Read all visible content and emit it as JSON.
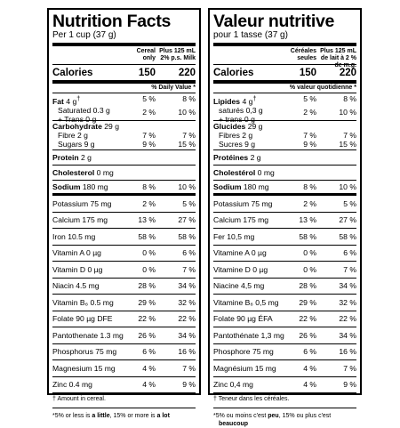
{
  "en": {
    "title": "Nutrition Facts",
    "serving": "Per 1 cup (37 g)",
    "col1": "Cereal only",
    "col2": "Plus 125 mL 2% p.s. Milk",
    "calories": {
      "label": "Calories",
      "v1": "150",
      "v2": "220"
    },
    "dv_header": "% Daily Value *",
    "fat": {
      "label": "Fat",
      "amount": "4 g",
      "mark": "†",
      "v1": "5 %",
      "v2": "8 %"
    },
    "sat": {
      "line1": "Saturated 0.3 g",
      "line2": "+ Trans 0 g",
      "v1": "2 %",
      "v2": "10 %"
    },
    "carb": {
      "label": "Carbohydrate",
      "amount": "29 g"
    },
    "fibre": {
      "label": "Fibre 2 g",
      "v1": "7 %",
      "v2": "7 %"
    },
    "sugars": {
      "label": "Sugars 9 g",
      "v1": "9 %",
      "v2": "15 %"
    },
    "protein": {
      "label": "Protein",
      "amount": "2 g"
    },
    "chol": {
      "label": "Cholesterol",
      "amount": "0 mg"
    },
    "sodium": {
      "label": "Sodium",
      "amount": "180 mg",
      "v1": "8 %",
      "v2": "10 %"
    },
    "minerals": [
      {
        "label": "Potassium 75 mg",
        "v1": "2 %",
        "v2": "5 %"
      },
      {
        "label": "Calcium 175 mg",
        "v1": "13 %",
        "v2": "27 %"
      },
      {
        "label": "Iron 10.5 mg",
        "v1": "58 %",
        "v2": "58 %"
      },
      {
        "label": "Vitamin A 0 µg",
        "v1": "0 %",
        "v2": "6 %"
      },
      {
        "label": "Vitamin D 0 µg",
        "v1": "0 %",
        "v2": "7 %"
      },
      {
        "label": "Niacin 4.5 mg",
        "v1": "28 %",
        "v2": "34 %"
      },
      {
        "label": "Vitamin B₆ 0.5 mg",
        "v1": "29 %",
        "v2": "32 %"
      },
      {
        "label": "Folate 90 µg DFE",
        "v1": "22 %",
        "v2": "22 %"
      },
      {
        "label": "Pantothenate 1.3 mg",
        "v1": "26 %",
        "v2": "34 %"
      },
      {
        "label": "Phosphorus 75 mg",
        "v1": "6 %",
        "v2": "16 %"
      },
      {
        "label": "Magnesium 15 mg",
        "v1": "4 %",
        "v2": "7 %"
      },
      {
        "label": "Zinc 0.4 mg",
        "v1": "4 %",
        "v2": "9 %"
      }
    ],
    "foot1": "† Amount in cereal.",
    "foot2_pre": "*5% or less is ",
    "foot2_a": "a little",
    "foot2_mid": ", 15% or more is ",
    "foot2_b": "a lot"
  },
  "fr": {
    "title": "Valeur nutritive",
    "serving": "pour 1 tasse (37 g)",
    "col1": "Céréales seules",
    "col2": "Plus 125 mL de lait à 2 % de m.g.",
    "calories": {
      "label": "Calories",
      "v1": "150",
      "v2": "220"
    },
    "dv_header": "% valeur quotidienne *",
    "fat": {
      "label": "Lipides",
      "amount": "4 g",
      "mark": "†",
      "v1": "5 %",
      "v2": "8 %"
    },
    "sat": {
      "line1": "saturés 0,3 g",
      "line2": "+ trans 0 g",
      "v1": "2 %",
      "v2": "10 %"
    },
    "carb": {
      "label": "Glucides",
      "amount": "29 g"
    },
    "fibre": {
      "label": "Fibres 2 g",
      "v1": "7 %",
      "v2": "7 %"
    },
    "sugars": {
      "label": "Sucres 9 g",
      "v1": "9 %",
      "v2": "15 %"
    },
    "protein": {
      "label": "Protéines",
      "amount": "2 g"
    },
    "chol": {
      "label": "Cholestérol",
      "amount": "0 mg"
    },
    "sodium": {
      "label": "Sodium",
      "amount": "180 mg",
      "v1": "8 %",
      "v2": "10 %"
    },
    "minerals": [
      {
        "label": "Potassium 75 mg",
        "v1": "2 %",
        "v2": "5 %"
      },
      {
        "label": "Calcium 175 mg",
        "v1": "13 %",
        "v2": "27 %"
      },
      {
        "label": "Fer 10,5 mg",
        "v1": "58 %",
        "v2": "58 %"
      },
      {
        "label": "Vitamine A 0 µg",
        "v1": "0 %",
        "v2": "6 %"
      },
      {
        "label": "Vitamine D 0 µg",
        "v1": "0 %",
        "v2": "7 %"
      },
      {
        "label": "Niacine 4,5 mg",
        "v1": "28 %",
        "v2": "34 %"
      },
      {
        "label": "Vitamine B₆ 0,5 mg",
        "v1": "29 %",
        "v2": "32 %"
      },
      {
        "label": "Folate 90 µg ÉFA",
        "v1": "22 %",
        "v2": "22 %"
      },
      {
        "label": "Pantothénate 1,3 mg",
        "v1": "26 %",
        "v2": "34 %"
      },
      {
        "label": "Phosphore 75 mg",
        "v1": "6 %",
        "v2": "16 %"
      },
      {
        "label": "Magnésium 15 mg",
        "v1": "4 %",
        "v2": "7 %"
      },
      {
        "label": "Zinc 0,4 mg",
        "v1": "4 %",
        "v2": "9 %"
      }
    ],
    "foot1": "† Teneur dans les céréales.",
    "foot2_pre": "*5% ou moins c'est ",
    "foot2_a": "peu",
    "foot2_mid": ", 15% ou plus c'est ",
    "foot2_b": "beaucoup"
  }
}
